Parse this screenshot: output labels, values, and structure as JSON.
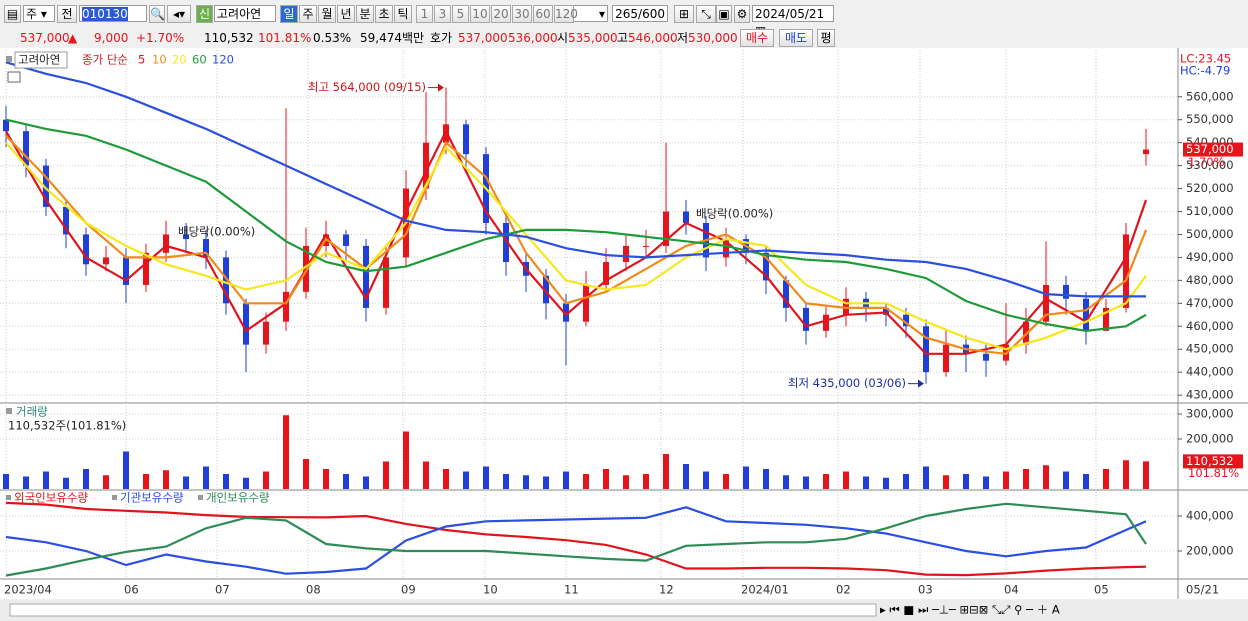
{
  "toolbar": {
    "period_type": "주",
    "view": "전",
    "code": "010130",
    "badge": "신",
    "name": "고려아연",
    "periods": [
      "일",
      "주",
      "월",
      "년",
      "분",
      "초",
      "틱"
    ],
    "selected_period_index": 0,
    "intervals": [
      "1",
      "3",
      "5",
      "10",
      "20",
      "30",
      "60",
      "120"
    ],
    "count": "265",
    "max": "/600",
    "date": "2024/05/21"
  },
  "info_bar": {
    "price": "537,000",
    "change_sign": "▲",
    "change": "9,000",
    "change_pct": "+1.70%",
    "volume": "110,532",
    "volume_ratio": "101.81%",
    "turnover": "0.53%",
    "amount": "59,474백만",
    "quote_label": "호가",
    "ask": "537,000",
    "bid": "536,000",
    "open_label": "시",
    "open": "535,000",
    "high_label": "고",
    "high": "546,000",
    "low_label": "저",
    "low": "530,000",
    "buy": "매수",
    "sell": "매도",
    "avg": "평"
  },
  "chart_data": [
    {
      "type": "candlestick",
      "title": "고려아연",
      "legend_label": "종가 단순",
      "up_color": "#e8141c",
      "down_color": "#1f3fd8",
      "xlim": [
        0,
        57
      ],
      "ylim": [
        427000,
        579500
      ],
      "yticks": [
        {
          "value": 430000,
          "label": "430,000"
        },
        {
          "value": 440000,
          "label": "440,000"
        },
        {
          "value": 450000,
          "label": "450,000"
        },
        {
          "value": 460000,
          "label": "460,000"
        },
        {
          "value": 470000,
          "label": "470,000"
        },
        {
          "value": 480000,
          "label": "480,000"
        },
        {
          "value": 490000,
          "label": "490,000"
        },
        {
          "value": 500000,
          "label": "500,000"
        },
        {
          "value": 510000,
          "label": "510,000"
        },
        {
          "value": 520000,
          "label": "520,000"
        },
        {
          "value": 530000,
          "label": "530,000"
        },
        {
          "value": 540000,
          "label": "540,000"
        },
        {
          "value": 550000,
          "label": "550,000"
        },
        {
          "value": 560000,
          "label": "560,000"
        }
      ],
      "xticks": [
        {
          "value": 0,
          "label": "2023/04"
        },
        {
          "value": 6,
          "label": "06"
        },
        {
          "value": 10.55,
          "label": "07"
        },
        {
          "value": 15.1,
          "label": "08"
        },
        {
          "value": 19.85,
          "label": "09"
        },
        {
          "value": 23.95,
          "label": "10"
        },
        {
          "value": 28,
          "label": "11"
        },
        {
          "value": 32.75,
          "label": "12"
        },
        {
          "value": 36.85,
          "label": "2024/01"
        },
        {
          "value": 41.6,
          "label": "02"
        },
        {
          "value": 45.7,
          "label": "03"
        },
        {
          "value": 50,
          "label": "04"
        },
        {
          "value": 54.5,
          "label": "05"
        }
      ],
      "x_end_label": "05/21",
      "open": [
        550000,
        545000,
        530000,
        512000,
        500000,
        487000,
        490000,
        478000,
        492000,
        500000,
        498000,
        490000,
        470000,
        452000,
        462000,
        475000,
        495000,
        500000,
        495000,
        468000,
        490000,
        520000,
        540000,
        548000,
        535000,
        505000,
        488000,
        482000,
        470000,
        462000,
        478000,
        488000,
        495000,
        495000,
        510000,
        505000,
        490000,
        498000,
        492000,
        480000,
        468000,
        458000,
        465000,
        472000,
        468000,
        465000,
        460000,
        440000,
        452000,
        448000,
        445000,
        452000,
        462000,
        478000,
        472000,
        458000,
        468000,
        535000
      ],
      "high": [
        556000,
        548000,
        533000,
        515000,
        503000,
        495000,
        494000,
        496000,
        506000,
        505000,
        502000,
        493000,
        472000,
        466000,
        555000,
        503000,
        506000,
        502000,
        498000,
        495000,
        528000,
        562000,
        564000,
        550000,
        538000,
        508000,
        492000,
        485000,
        474000,
        484000,
        494000,
        500000,
        502000,
        540000,
        515000,
        508000,
        503000,
        500000,
        495000,
        482000,
        470000,
        469000,
        477000,
        475000,
        470000,
        468000,
        463000,
        458000,
        456000,
        452000,
        470000,
        468000,
        497000,
        482000,
        475000,
        472000,
        505000,
        546000
      ],
      "low": [
        538000,
        525000,
        508000,
        494000,
        482000,
        484000,
        470000,
        475000,
        488000,
        492000,
        485000,
        465000,
        440000,
        448000,
        458000,
        472000,
        490000,
        488000,
        462000,
        465000,
        486000,
        515000,
        535000,
        528000,
        500000,
        482000,
        475000,
        463000,
        443000,
        460000,
        475000,
        484000,
        490000,
        492000,
        500000,
        484000,
        486000,
        487000,
        474000,
        462000,
        452000,
        455000,
        460000,
        462000,
        460000,
        455000,
        435000,
        438000,
        440000,
        438000,
        443000,
        448000,
        460000,
        465000,
        452000,
        458000,
        466000,
        530000
      ],
      "close": [
        545000,
        530000,
        512000,
        500000,
        487000,
        490000,
        478000,
        492000,
        500000,
        498000,
        490000,
        470000,
        452000,
        462000,
        475000,
        495000,
        500000,
        495000,
        468000,
        490000,
        520000,
        540000,
        548000,
        535000,
        505000,
        488000,
        482000,
        470000,
        462000,
        478000,
        488000,
        495000,
        495000,
        510000,
        505000,
        490000,
        498000,
        492000,
        480000,
        468000,
        458000,
        465000,
        472000,
        468000,
        465000,
        460000,
        440000,
        452000,
        448000,
        445000,
        452000,
        462000,
        478000,
        472000,
        458000,
        468000,
        500000,
        537000
      ],
      "moving_averages": {
        "x": [
          0,
          2,
          4,
          6,
          8,
          10,
          12,
          14,
          16,
          18,
          20,
          22,
          24,
          26,
          28,
          30,
          32,
          34,
          36,
          38,
          40,
          42,
          44,
          46,
          48,
          50,
          52,
          54,
          56,
          57
        ],
        "series": [
          {
            "name": "5",
            "color": "#e0141c",
            "values": [
              545000,
              515000,
              490000,
              480000,
              495000,
              490000,
              458000,
              470000,
              500000,
              472000,
              510000,
              545000,
              510000,
              485000,
              465000,
              480000,
              490000,
              505000,
              497000,
              482000,
              460000,
              465000,
              466000,
              448000,
              448000,
              452000,
              472000,
              462000,
              490000,
              515000
            ]
          },
          {
            "name": "10",
            "color": "#f08a1c",
            "values": [
              543000,
              525000,
              505000,
              490000,
              490000,
              492000,
              470000,
              470000,
              498000,
              485000,
              500000,
              540000,
              525000,
              492000,
              470000,
              475000,
              485000,
              495000,
              500000,
              490000,
              470000,
              468000,
              468000,
              455000,
              450000,
              448000,
              465000,
              467000,
              480000,
              502000
            ]
          },
          {
            "name": "20",
            "color": "#f5e81c",
            "values": [
              540000,
              520000,
              505000,
              495000,
              487000,
              482000,
              476000,
              480000,
              492000,
              485000,
              505000,
              538000,
              520000,
              500000,
              480000,
              476000,
              478000,
              490000,
              498000,
              495000,
              478000,
              470000,
              470000,
              462000,
              455000,
              450000,
              455000,
              462000,
              470000,
              482000
            ]
          },
          {
            "name": "60",
            "color": "#1f9a3a",
            "values": [
              550000,
              546000,
              543000,
              537000,
              530000,
              523000,
              510000,
              497000,
              488000,
              484000,
              486000,
              492000,
              498000,
              502000,
              502000,
              501000,
              499000,
              497000,
              495000,
              491000,
              489000,
              488000,
              485000,
              481000,
              471000,
              465000,
              461000,
              458000,
              460000,
              465000
            ]
          },
          {
            "name": "120",
            "color": "#2b4fe0",
            "values": [
              575000,
              570000,
              566000,
              560000,
              553000,
              546000,
              538000,
              530000,
              522000,
              514000,
              506000,
              502000,
              501000,
              499000,
              494000,
              491000,
              490000,
              491000,
              492000,
              493000,
              492000,
              491000,
              489000,
              488000,
              485000,
              480000,
              474000,
              473000,
              473000,
              473000
            ]
          }
        ]
      },
      "annotations": [
        {
          "text": "최고 564,000 (09/15)",
          "x": 22,
          "value": 564000,
          "color": "#c8141c",
          "side": "left"
        },
        {
          "text": "최저 435,000 (03/06)",
          "x": 46,
          "value": 435000,
          "color": "#1f2fa0",
          "side": "left"
        },
        {
          "text": "배당락(0.00%)",
          "x": 8.6,
          "value": 501000,
          "color": "#222222",
          "side": "right"
        },
        {
          "text": "배당락(0.00%)",
          "x": 34.5,
          "value": 509000,
          "color": "#222222",
          "side": "right"
        }
      ],
      "last_price": {
        "value": 537000,
        "label": "537,000",
        "change": "1.70%"
      },
      "lc": "LC:23.45",
      "hc": "HC:-4.79"
    },
    {
      "type": "bar",
      "title": "거래량",
      "subtitle": "110,532주(101.81%)",
      "xlim": [
        0,
        57
      ],
      "ylim": [
        0,
        336000
      ],
      "yticks": [
        {
          "value": 200000,
          "label": "200,000"
        },
        {
          "value": 300000,
          "label": "300,000"
        }
      ],
      "values": [
        60000,
        50000,
        70000,
        45000,
        80000,
        55000,
        150000,
        60000,
        75000,
        50000,
        90000,
        60000,
        45000,
        70000,
        295000,
        120000,
        80000,
        60000,
        50000,
        110000,
        230000,
        110000,
        80000,
        70000,
        90000,
        60000,
        55000,
        50000,
        70000,
        60000,
        80000,
        55000,
        60000,
        140000,
        100000,
        70000,
        60000,
        90000,
        80000,
        55000,
        50000,
        60000,
        70000,
        50000,
        45000,
        60000,
        90000,
        55000,
        60000,
        50000,
        70000,
        80000,
        95000,
        70000,
        60000,
        80000,
        115000,
        110532
      ],
      "last_label": {
        "value": 110532,
        "label": "110,532"
      },
      "last_ratio": "101.81%"
    },
    {
      "type": "line",
      "xlim": [
        0,
        57
      ],
      "ylim": [
        45700,
        542900
      ],
      "yticks": [
        {
          "value": 200000,
          "label": "200,000"
        },
        {
          "value": 400000,
          "label": "400,000"
        }
      ],
      "x": [
        0,
        2,
        4,
        6,
        8,
        10,
        12,
        14,
        16,
        18,
        20,
        22,
        24,
        26,
        28,
        30,
        32,
        34,
        36,
        38,
        40,
        42,
        44,
        46,
        48,
        50,
        52,
        54,
        56,
        57
      ],
      "series": [
        {
          "name": "외국인보유수량",
          "color": "#e0141c",
          "values": [
            475000,
            465000,
            440000,
            430000,
            420000,
            405000,
            395000,
            393000,
            392000,
            400000,
            355000,
            320000,
            295000,
            280000,
            262000,
            235000,
            180000,
            100000,
            100000,
            104000,
            104000,
            100000,
            90000,
            65000,
            62000,
            72000,
            88000,
            100000,
            108000,
            110000
          ]
        },
        {
          "name": "기관보유수량",
          "color": "#2b4fe0",
          "values": [
            280000,
            250000,
            200000,
            120000,
            180000,
            140000,
            110000,
            70000,
            80000,
            100000,
            260000,
            340000,
            370000,
            375000,
            380000,
            385000,
            390000,
            450000,
            370000,
            360000,
            350000,
            330000,
            300000,
            250000,
            200000,
            170000,
            200000,
            220000,
            320000,
            370000
          ]
        },
        {
          "name": "개인보유수량",
          "color": "#2e8b57",
          "values": [
            60000,
            100000,
            150000,
            195000,
            225000,
            330000,
            390000,
            375000,
            240000,
            215000,
            200000,
            200000,
            200000,
            185000,
            170000,
            155000,
            145000,
            230000,
            240000,
            250000,
            250000,
            270000,
            330000,
            400000,
            440000,
            470000,
            450000,
            430000,
            410000,
            240000
          ]
        }
      ]
    }
  ]
}
